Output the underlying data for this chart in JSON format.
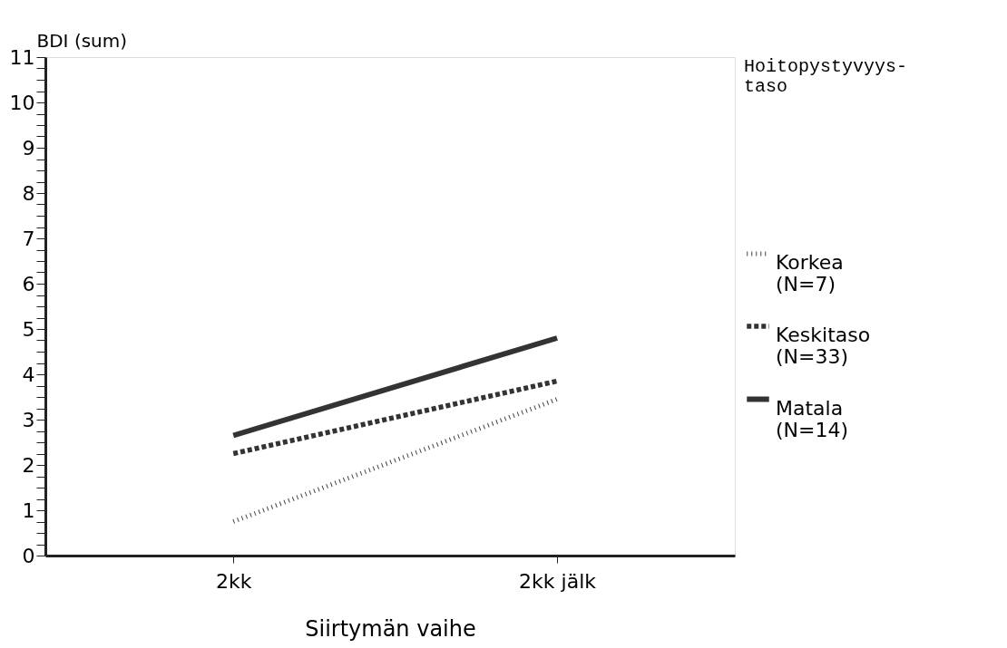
{
  "chart_data": {
    "type": "line",
    "xlabel": "Siirtymän vaihe",
    "ylabel": "BDI (sum)",
    "legend_title": "Hoitopystyvyys-\ntaso",
    "categories": [
      "2kk",
      "2kk jälk"
    ],
    "series": [
      {
        "name": "Korkea\n(N=7)",
        "color": "#444444",
        "line_style": "dotted",
        "values": [
          0.75,
          3.45
        ]
      },
      {
        "name": "Keskitaso\n(N=33)",
        "color": "#333333",
        "line_style": "dashed",
        "values": [
          2.25,
          3.85
        ]
      },
      {
        "name": "Matala\n(N=14)",
        "color": "#333333",
        "line_style": "solid",
        "values": [
          2.65,
          4.8
        ]
      }
    ],
    "ylim": [
      0,
      11
    ],
    "yticks": [
      0,
      {
        "value": 0.25,
        "label": null
      },
      {
        "value": 0.5,
        "label": null
      },
      {
        "value": 0.75,
        "label": null
      },
      1,
      {
        "value": 1.25,
        "label": null
      },
      {
        "value": 1.5,
        "label": null
      },
      {
        "value": 1.75,
        "label": null
      },
      2,
      {
        "value": 2.25,
        "label": null
      },
      {
        "value": 2.5,
        "label": null
      },
      {
        "value": 2.75,
        "label": null
      },
      3,
      {
        "value": 3.25,
        "label": null
      },
      {
        "value": 3.5,
        "label": null
      },
      {
        "value": 3.75,
        "label": null
      },
      4,
      {
        "value": 4.25,
        "label": null
      },
      {
        "value": 4.5,
        "label": null
      },
      {
        "value": 4.75,
        "label": null
      },
      5,
      {
        "value": 5.25,
        "label": null
      },
      {
        "value": 5.5,
        "label": null
      },
      {
        "value": 5.75,
        "label": null
      },
      6,
      {
        "value": 6.25,
        "label": null
      },
      {
        "value": 6.5,
        "label": null
      },
      {
        "value": 6.75,
        "label": null
      },
      7,
      {
        "value": 7.25,
        "label": null
      },
      {
        "value": 7.5,
        "label": null
      },
      {
        "value": 7.75,
        "label": null
      },
      8,
      {
        "value": 8.25,
        "label": null
      },
      {
        "value": 8.5,
        "label": null
      },
      {
        "value": 8.75,
        "label": null
      },
      9,
      {
        "value": 9.25,
        "label": null
      },
      {
        "value": 9.5,
        "label": null
      },
      {
        "value": 9.75,
        "label": null
      },
      10,
      {
        "value": 10.25,
        "label": null
      },
      {
        "value": 10.5,
        "label": null
      },
      {
        "value": 10.75,
        "label": null
      },
      11
    ],
    "grid": false,
    "legend": "right",
    "marker": "none"
  }
}
